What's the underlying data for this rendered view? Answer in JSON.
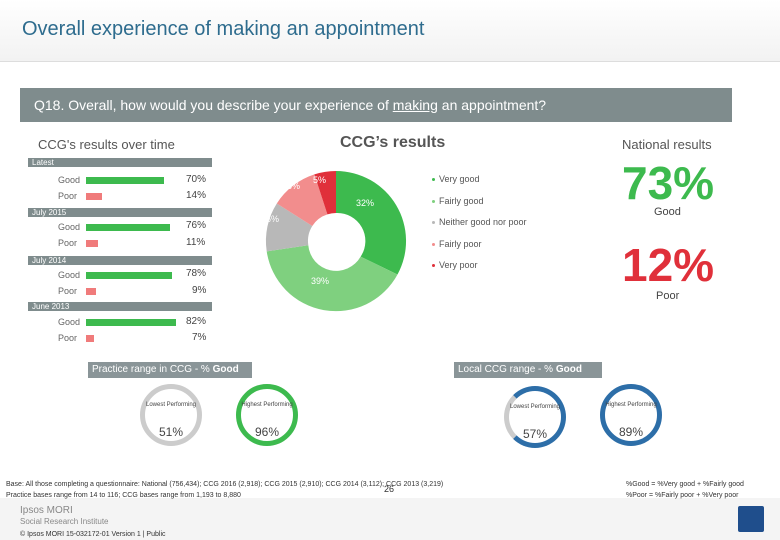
{
  "title": "Overall experience of making an appointment",
  "question": {
    "prefix": "Q18. Overall, how would you describe your experience of ",
    "underlined": "making",
    "suffix": " an appointment?"
  },
  "headers": {
    "over_time": "CCG's results over time",
    "ccg": "CCG’s results",
    "national": "National results"
  },
  "over_time": [
    {
      "period": "Latest",
      "good_label": "Good",
      "good": "70%",
      "poor_label": "Poor",
      "poor": "14%"
    },
    {
      "period": "July 2015",
      "good_label": "Good",
      "good": "76%",
      "poor_label": "Poor",
      "poor": "11%"
    },
    {
      "period": "July 2014",
      "good_label": "Good",
      "good": "78%",
      "poor_label": "Poor",
      "poor": "9%"
    },
    {
      "period": "June 2013",
      "good_label": "Good",
      "good": "82%",
      "poor_label": "Poor",
      "poor": "7%"
    }
  ],
  "donut_labels": {
    "very_poor": "5%",
    "fairly_poor": "8%",
    "neither": "16%",
    "very_good": "39%",
    "fairly_good": "32%"
  },
  "legend": [
    "Very good",
    "Fairly good",
    "Neither good nor poor",
    "Fairly poor",
    "Very poor"
  ],
  "national": {
    "good_value": "73%",
    "good_label": "Good",
    "poor_value": "12%",
    "poor_label": "Poor"
  },
  "practice_range": {
    "title_prefix": "Practice range in CCG - % ",
    "title_bold": "Good",
    "lowest_label": "Lowest Performing",
    "lowest_value": "51%",
    "highest_label": "Highest Performing",
    "highest_value": "96%"
  },
  "local_range": {
    "title_prefix": "Local CCG range - % ",
    "title_bold": "Good",
    "lowest_label": "Lowest Performing",
    "lowest_value": "57%",
    "highest_label": "Highest Performing",
    "highest_value": "89%"
  },
  "footer": {
    "base_line1": "Base: All those completing a questionnaire: National (756,434); CCG 2016 (2,918); CCG 2015 (2,910); CCG 2014 (3,112); CCG 2013 (3,219)",
    "base_line2": "Practice bases range from 14 to 116; CCG bases range from 1,193 to 8,880",
    "good_def": "%Good = %Very good + %Fairly good",
    "poor_def": "%Poor = %Fairly poor + %Very poor",
    "page": "26",
    "logo_line1": "Ipsos MORI",
    "logo_line2": "Social Research Institute",
    "copyright": "© Ipsos MORI    15-032172-01 Version 1 | Public"
  },
  "colors": {
    "very_good": "#3dba4e",
    "fairly_good": "#7fd07f",
    "neither": "#b8b8b8",
    "fairly_poor": "#f28d8d",
    "very_poor": "#e0303a",
    "good_bar": "#3dba4e",
    "poor_bar": "#f07b7b",
    "good_text": "#3dba4e",
    "poor_text": "#e0303a"
  }
}
